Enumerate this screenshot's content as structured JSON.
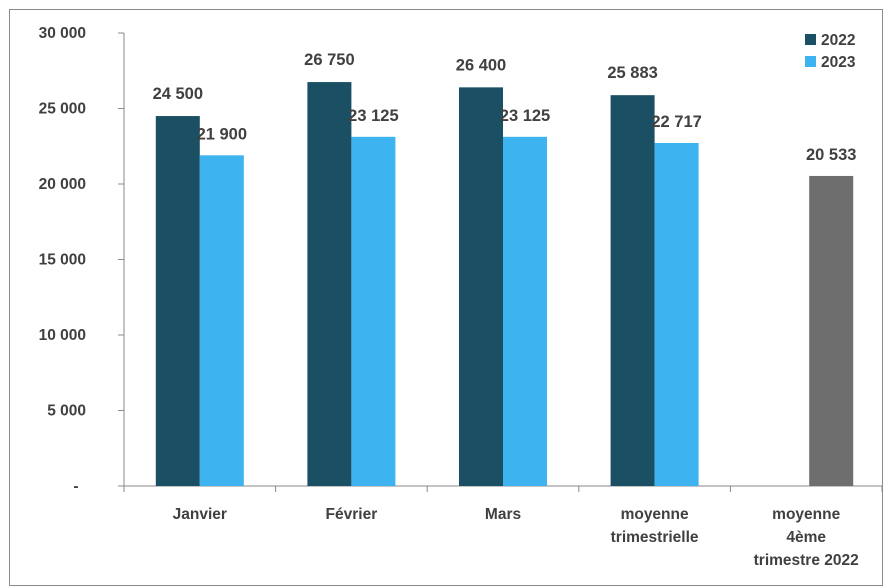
{
  "chart_data": {
    "type": "bar",
    "title": "",
    "xlabel": "",
    "ylabel": "",
    "ylim": [
      0,
      30000
    ],
    "y_ticks": [
      {
        "value": 0,
        "label": "-"
      },
      {
        "value": 5000,
        "label": "5 000"
      },
      {
        "value": 10000,
        "label": "10 000"
      },
      {
        "value": 15000,
        "label": "15 000"
      },
      {
        "value": 20000,
        "label": "20 000"
      },
      {
        "value": 25000,
        "label": "25 000"
      },
      {
        "value": 30000,
        "label": "30 000"
      }
    ],
    "categories": [
      [
        "Janvier"
      ],
      [
        "Février"
      ],
      [
        "Mars"
      ],
      [
        "moyenne",
        "trimestrielle"
      ],
      [
        "moyenne",
        "4ème",
        "trimestre 2022"
      ]
    ],
    "series": [
      {
        "name": "2022",
        "color": "#1b4f63",
        "values": [
          24500,
          26750,
          26400,
          25883,
          null
        ],
        "labels": [
          "24 500",
          "26 750",
          "26 400",
          "25 883",
          ""
        ]
      },
      {
        "name": "2023",
        "color": "#3db4f0",
        "values": [
          21900,
          23125,
          23125,
          22717,
          null
        ],
        "labels": [
          "21 900",
          "23 125",
          "23 125",
          "22 717",
          ""
        ]
      },
      {
        "name": "",
        "color": "#6e6e6e",
        "values": [
          null,
          null,
          null,
          null,
          20533
        ],
        "labels": [
          "",
          "",
          "",
          "",
          "20 533"
        ]
      }
    ],
    "legend": {
      "position": "top-right",
      "entries": [
        "2022",
        "2023"
      ]
    },
    "grid": false
  }
}
